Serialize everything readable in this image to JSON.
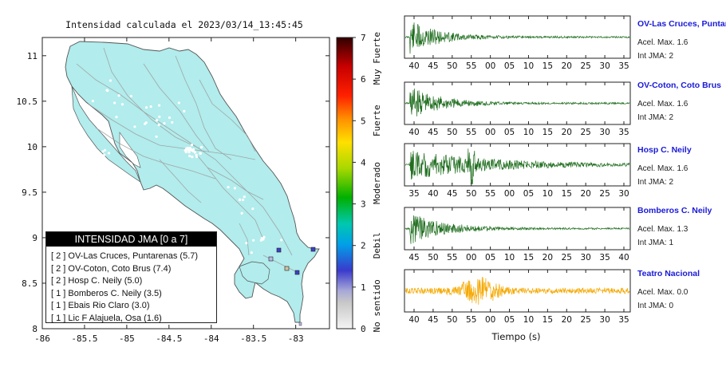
{
  "map": {
    "title": "Intensidad calculada el 2023/03/14_13:45:45",
    "yticks": [
      8,
      8.5,
      9,
      9.5,
      10,
      10.5,
      11
    ],
    "xticks": [
      -86,
      -85.5,
      -85,
      -84.5,
      -84,
      -83.5,
      -83
    ],
    "xlim": [
      -86,
      -82.6
    ],
    "ylim": [
      8,
      11.2
    ],
    "land_color": "#b2ecec",
    "marker_colors": [
      "#3e40c8",
      "#b8b8e6",
      "#d4c2a0"
    ]
  },
  "colorbar": {
    "ticks": [
      0,
      1,
      2,
      3,
      4,
      5,
      6,
      7
    ],
    "labels": [
      "No sentido",
      "Debil",
      "Moderado",
      "Fuerte",
      "Muy Fuerte"
    ],
    "range": [
      0,
      7
    ]
  },
  "legend": {
    "title": "INTENSIDAD JMA [0 a 7]",
    "items": [
      "[ 2 ]  OV-Las Cruces, Puntarenas (5.7)",
      "[ 2 ]  OV-Coton, Coto Brus (7.4)",
      "[ 2 ]  Hosp C. Neily (5.0)",
      "[ 1 ]  Bomberos C. Neily (3.5)",
      "[ 1 ]  Ebais Rio Claro (3.0)",
      "[ 1 ]  Lic F Alajuela, Osa (1.6)"
    ]
  },
  "stations": [
    {
      "name": "OV-Las Cruces, Puntar",
      "accel": "Acel. Max. 1.6",
      "jma": "Int JMA: 2",
      "color": "#1f6e1f",
      "ticks": [
        "40",
        "45",
        "50",
        "55",
        "00",
        "05",
        "10",
        "15",
        "20",
        "25",
        "30",
        "35"
      ]
    },
    {
      "name": "OV-Coton, Coto Brus",
      "accel": "Acel. Max. 1.6",
      "jma": "Int JMA: 2",
      "color": "#1f6e1f",
      "ticks": [
        "40",
        "45",
        "50",
        "55",
        "00",
        "05",
        "10",
        "15",
        "20",
        "25",
        "30",
        "35"
      ]
    },
    {
      "name": "Hosp C. Neily",
      "accel": "Acel. Max. 1.6",
      "jma": "Int JMA: 2",
      "color": "#1f6e1f",
      "ticks": [
        "35",
        "40",
        "45",
        "50",
        "55",
        "00",
        "05",
        "10",
        "15",
        "20",
        "25",
        "30"
      ]
    },
    {
      "name": "Bomberos C. Neily",
      "accel": "Acel. Max. 1.3",
      "jma": "Int JMA: 1",
      "color": "#1f6e1f",
      "ticks": [
        "45",
        "50",
        "55",
        "00",
        "05",
        "10",
        "15",
        "20",
        "25",
        "30",
        "35",
        "40"
      ]
    },
    {
      "name": "Teatro Nacional",
      "accel": "Acel. Max. 0.0",
      "jma": "Int JMA: 0",
      "color": "#f5a800",
      "ticks": [
        "40",
        "45",
        "50",
        "55",
        "00",
        "05",
        "10",
        "15",
        "20",
        "25",
        "30",
        "35"
      ]
    }
  ],
  "xlabel": "Tiempo (s)"
}
